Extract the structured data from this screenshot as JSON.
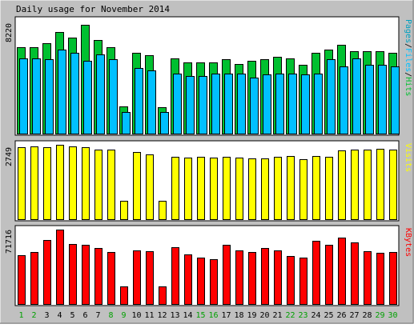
{
  "title": "Daily usage for November 2014",
  "colors": {
    "background": "#c0c0c0",
    "panel": "#ffffff",
    "hits": "#00c030",
    "files": "#00c0ff",
    "pages": "#00a0c0",
    "visits": "#ffff00",
    "kbytes": "#ff0000",
    "weekend_label": "#00a000",
    "weekday_label": "#000000"
  },
  "chart_data": [
    {
      "type": "bar",
      "panel": "pages-files-hits",
      "ymax_label": "8220",
      "ylim": [
        0,
        8220
      ],
      "legend": {
        "parts": [
          {
            "text": "Pages",
            "color": "#00a0c0"
          },
          {
            "text": "/",
            "color": "#000000"
          },
          {
            "text": "Files",
            "color": "#00c0ff"
          },
          {
            "text": "/",
            "color": "#000000"
          },
          {
            "text": "Hits",
            "color": "#00c030"
          }
        ]
      },
      "categories": [
        "1",
        "2",
        "3",
        "4",
        "5",
        "6",
        "7",
        "8",
        "9",
        "10",
        "11",
        "12",
        "13",
        "14",
        "15",
        "16",
        "17",
        "18",
        "19",
        "20",
        "21",
        "22",
        "23",
        "24",
        "25",
        "26",
        "27",
        "28",
        "29",
        "30"
      ],
      "series": [
        {
          "name": "Hits",
          "values": [
            6300,
            6300,
            6600,
            7400,
            7000,
            7900,
            6800,
            6300,
            2000,
            5900,
            5700,
            1900,
            5500,
            5200,
            5200,
            5200,
            5400,
            5100,
            5300,
            5400,
            5600,
            5500,
            5000,
            5900,
            6100,
            6500,
            6000,
            6000,
            6000,
            5900
          ]
        },
        {
          "name": "Files",
          "values": [
            5500,
            5500,
            5400,
            6100,
            5900,
            5300,
            5800,
            5400,
            1600,
            4800,
            4600,
            1600,
            4400,
            4200,
            4200,
            4400,
            4400,
            4400,
            4100,
            4300,
            4400,
            4400,
            4300,
            4400,
            5400,
            4900,
            5500,
            5000,
            5000,
            4900
          ]
        },
        {
          "name": "Pages",
          "values": [
            0,
            0,
            0,
            0,
            0,
            0,
            0,
            0,
            0,
            0,
            0,
            0,
            0,
            0,
            0,
            0,
            0,
            0,
            0,
            0,
            0,
            0,
            0,
            0,
            0,
            0,
            0,
            0,
            0,
            0
          ]
        }
      ]
    },
    {
      "type": "bar",
      "panel": "visits",
      "ymax_label": "2749",
      "ylim": [
        0,
        2749
      ],
      "legend": {
        "parts": [
          {
            "text": "Visits",
            "color": "#ffff00"
          }
        ]
      },
      "categories": [
        "1",
        "2",
        "3",
        "4",
        "5",
        "6",
        "7",
        "8",
        "9",
        "10",
        "11",
        "12",
        "13",
        "14",
        "15",
        "16",
        "17",
        "18",
        "19",
        "20",
        "21",
        "22",
        "23",
        "24",
        "25",
        "26",
        "27",
        "28",
        "29",
        "30"
      ],
      "series": [
        {
          "name": "Visits",
          "values": [
            2650,
            2700,
            2660,
            2749,
            2700,
            2650,
            2580,
            2560,
            680,
            2470,
            2390,
            690,
            2300,
            2290,
            2300,
            2290,
            2320,
            2270,
            2240,
            2260,
            2310,
            2330,
            2230,
            2330,
            2300,
            2550,
            2560,
            2560,
            2600,
            2580
          ]
        }
      ]
    },
    {
      "type": "bar",
      "panel": "kbytes",
      "ymax_label": "71716",
      "ylim": [
        0,
        71716
      ],
      "legend": {
        "parts": [
          {
            "text": "KBytes",
            "color": "#ff0000"
          }
        ]
      },
      "categories": [
        "1",
        "2",
        "3",
        "4",
        "5",
        "6",
        "7",
        "8",
        "9",
        "10",
        "11",
        "12",
        "13",
        "14",
        "15",
        "16",
        "17",
        "18",
        "19",
        "20",
        "21",
        "22",
        "23",
        "24",
        "25",
        "26",
        "27",
        "28",
        "29",
        "30"
      ],
      "series": [
        {
          "name": "KBytes",
          "values": [
            47000,
            50000,
            62000,
            71716,
            58000,
            57000,
            54000,
            50000,
            17000,
            52000,
            51000,
            17000,
            55000,
            48000,
            45000,
            43000,
            57000,
            52000,
            50000,
            54000,
            52000,
            46000,
            45000,
            61000,
            57000,
            64000,
            59000,
            51000,
            49000,
            50000
          ]
        }
      ]
    }
  ],
  "x_axis": {
    "days": [
      {
        "label": "1",
        "weekend": true
      },
      {
        "label": "2",
        "weekend": true
      },
      {
        "label": "3",
        "weekend": false
      },
      {
        "label": "4",
        "weekend": false
      },
      {
        "label": "5",
        "weekend": false
      },
      {
        "label": "6",
        "weekend": false
      },
      {
        "label": "7",
        "weekend": false
      },
      {
        "label": "8",
        "weekend": true
      },
      {
        "label": "9",
        "weekend": true
      },
      {
        "label": "10",
        "weekend": false
      },
      {
        "label": "11",
        "weekend": false
      },
      {
        "label": "12",
        "weekend": false
      },
      {
        "label": "13",
        "weekend": false
      },
      {
        "label": "14",
        "weekend": false
      },
      {
        "label": "15",
        "weekend": true
      },
      {
        "label": "16",
        "weekend": true
      },
      {
        "label": "17",
        "weekend": false
      },
      {
        "label": "18",
        "weekend": false
      },
      {
        "label": "19",
        "weekend": false
      },
      {
        "label": "20",
        "weekend": false
      },
      {
        "label": "21",
        "weekend": false
      },
      {
        "label": "22",
        "weekend": true
      },
      {
        "label": "23",
        "weekend": true
      },
      {
        "label": "24",
        "weekend": false
      },
      {
        "label": "25",
        "weekend": false
      },
      {
        "label": "26",
        "weekend": false
      },
      {
        "label": "27",
        "weekend": false
      },
      {
        "label": "28",
        "weekend": false
      },
      {
        "label": "29",
        "weekend": true
      },
      {
        "label": "30",
        "weekend": true
      }
    ]
  }
}
